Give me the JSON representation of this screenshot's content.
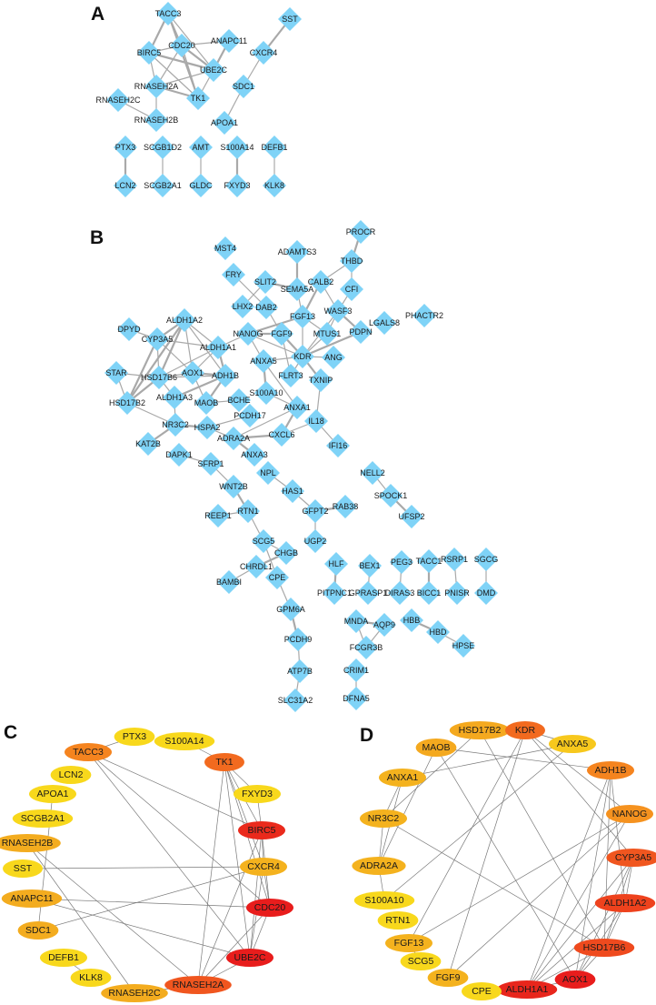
{
  "panels": [
    {
      "id": "A",
      "label": "A",
      "node_shape": "diamond",
      "node_color": "#7fd3f7",
      "nodes": [
        "TACC3",
        "ANAPC11",
        "CDC20",
        "BIRC5",
        "UBE2C",
        "RNASEH2A",
        "TK1",
        "RNASEH2C",
        "RNASEH2B",
        "SST",
        "CXCR4",
        "SDC1",
        "APOA1",
        "PTX3",
        "SCGB1D2",
        "AMT",
        "S100A14",
        "DEFB1",
        "LCN2",
        "SCGB2A1",
        "GLDC",
        "FXYD3",
        "KLK8"
      ],
      "edges": [
        [
          "TACC3",
          "BIRC5"
        ],
        [
          "TACC3",
          "CDC20"
        ],
        [
          "TACC3",
          "UBE2C"
        ],
        [
          "TACC3",
          "TK1"
        ],
        [
          "CDC20",
          "ANAPC11"
        ],
        [
          "CDC20",
          "BIRC5"
        ],
        [
          "CDC20",
          "UBE2C"
        ],
        [
          "CDC20",
          "TK1"
        ],
        [
          "CDC20",
          "RNASEH2A"
        ],
        [
          "BIRC5",
          "UBE2C"
        ],
        [
          "BIRC5",
          "TK1"
        ],
        [
          "BIRC5",
          "RNASEH2A"
        ],
        [
          "ANAPC11",
          "UBE2C"
        ],
        [
          "UBE2C",
          "TK1"
        ],
        [
          "UBE2C",
          "RNASEH2A"
        ],
        [
          "RNASEH2A",
          "TK1"
        ],
        [
          "RNASEH2A",
          "RNASEH2B"
        ],
        [
          "RNASEH2C",
          "RNASEH2B"
        ],
        [
          "SST",
          "CXCR4"
        ],
        [
          "CXCR4",
          "SDC1"
        ],
        [
          "SDC1",
          "APOA1"
        ],
        [
          "PTX3",
          "LCN2"
        ],
        [
          "SCGB1D2",
          "SCGB2A1"
        ],
        [
          "AMT",
          "GLDC"
        ],
        [
          "S100A14",
          "FXYD3"
        ],
        [
          "DEFB1",
          "KLK8"
        ]
      ]
    },
    {
      "id": "B",
      "label": "B",
      "node_shape": "diamond",
      "node_color": "#7fd3f7",
      "nodes": [
        "PROCR",
        "MST4",
        "ADAMTS3",
        "THBD",
        "FRY",
        "SLIT2",
        "SEMA5A",
        "CALB2",
        "CFI",
        "LHX2",
        "DAB2",
        "WASF3",
        "FGF13",
        "PHACTR2",
        "LGALS8",
        "DPYD",
        "ALDH1A2",
        "NANOG",
        "FGF9",
        "MTUS1",
        "PDPN",
        "CYP3A5",
        "ALDH1A1",
        "KDR",
        "ANG",
        "ANXA5",
        "STAR",
        "HSD17B6",
        "AOX1",
        "ADH1B",
        "FLRT3",
        "TXNIP",
        "S100A10",
        "HSD17B2",
        "ALDH1A3",
        "MAOB",
        "BCHE",
        "ANXA1",
        "PCDH17",
        "IL18",
        "NR3C2",
        "HSPA2",
        "CXCL6",
        "ADRA2A",
        "KAT2B",
        "IFI16",
        "DAPK1",
        "ANXA3",
        "SFRP1",
        "NPL",
        "NELL2",
        "WNT2B",
        "HAS1",
        "SPOCK1",
        "REEP1",
        "RTN1",
        "GFPT2",
        "RAB38",
        "UFSP2",
        "SCG5",
        "UGP2",
        "CHGB",
        "HLF",
        "BEX1",
        "PEG3",
        "TACC1",
        "RSRP1",
        "SGCG",
        "CHRDL1",
        "BAMBI",
        "CPE",
        "PITPNC1",
        "GPRASP1",
        "DIRAS3",
        "BICC1",
        "PNISR",
        "DMD",
        "GPM6A",
        "MNDA",
        "AQP9",
        "HBB",
        "HBD",
        "FCGR3B",
        "HPSE",
        "PCDH9",
        "CRIM1",
        "ATP7B",
        "DFNA5",
        "SLC31A2"
      ],
      "edges": [
        [
          "PROCR",
          "THBD"
        ],
        [
          "THBD",
          "CALB2"
        ],
        [
          "THBD",
          "CFI"
        ],
        [
          "ADAMTS3",
          "SEMA5A"
        ],
        [
          "FRY",
          "DAB2"
        ],
        [
          "SLIT2",
          "LHX2"
        ],
        [
          "SLIT2",
          "SEMA5A"
        ],
        [
          "SEMA5A",
          "FGF13"
        ],
        [
          "CALB2",
          "WASF3"
        ],
        [
          "CALB2",
          "FGF13"
        ],
        [
          "CFI",
          "WASF3"
        ],
        [
          "WASF3",
          "KDR"
        ],
        [
          "WASF3",
          "PDPN"
        ],
        [
          "WASF3",
          "MTUS1"
        ],
        [
          "DAB2",
          "FGF9"
        ],
        [
          "FGF13",
          "NANOG"
        ],
        [
          "FGF13",
          "KDR"
        ],
        [
          "FGF13",
          "MTUS1"
        ],
        [
          "NANOG",
          "FGF9"
        ],
        [
          "NANOG",
          "KDR"
        ],
        [
          "NANOG",
          "ANXA5"
        ],
        [
          "FGF9",
          "KDR"
        ],
        [
          "FGF9",
          "FLRT3"
        ],
        [
          "MTUS1",
          "KDR"
        ],
        [
          "PDPN",
          "KDR"
        ],
        [
          "KDR",
          "ANG"
        ],
        [
          "KDR",
          "ANXA5"
        ],
        [
          "KDR",
          "TXNIP"
        ],
        [
          "KDR",
          "FLRT3"
        ],
        [
          "TXNIP",
          "IL18"
        ],
        [
          "ANXA5",
          "S100A10"
        ],
        [
          "ANXA5",
          "ANXA1"
        ],
        [
          "S100A10",
          "ANXA1"
        ],
        [
          "ANXA1",
          "CXCL6"
        ],
        [
          "ANXA1",
          "ADRA2A"
        ],
        [
          "CXCL6",
          "IL18"
        ],
        [
          "CXCL6",
          "ADRA2A"
        ],
        [
          "IL18",
          "IFI16"
        ],
        [
          "ADRA2A",
          "HSPA2"
        ],
        [
          "HSPA2",
          "NR3C2"
        ],
        [
          "HSPA2",
          "PCDH17"
        ],
        [
          "MAOB",
          "BCHE"
        ],
        [
          "MAOB",
          "ADH1B"
        ],
        [
          "MAOB",
          "AOX1"
        ],
        [
          "DPYD",
          "CYP3A5"
        ],
        [
          "CYP3A5",
          "ALDH1A2"
        ],
        [
          "CYP3A5",
          "ALDH1A1"
        ],
        [
          "CYP3A5",
          "HSD17B6"
        ],
        [
          "CYP3A5",
          "HSD17B2"
        ],
        [
          "CYP3A5",
          "AOX1"
        ],
        [
          "ALDH1A2",
          "ALDH1A1"
        ],
        [
          "ALDH1A2",
          "HSD17B6"
        ],
        [
          "ALDH1A2",
          "AOX1"
        ],
        [
          "ALDH1A2",
          "ADH1B"
        ],
        [
          "ALDH1A2",
          "HSD17B2"
        ],
        [
          "ALDH1A1",
          "HSD17B6"
        ],
        [
          "ALDH1A1",
          "AOX1"
        ],
        [
          "ALDH1A1",
          "ADH1B"
        ],
        [
          "ALDH1A1",
          "NANOG"
        ],
        [
          "AOX1",
          "HSD17B6"
        ],
        [
          "AOX1",
          "ADH1B"
        ],
        [
          "HSD17B6",
          "ADH1B"
        ],
        [
          "HSD17B6",
          "STAR"
        ],
        [
          "HSD17B6",
          "HSD17B2"
        ],
        [
          "HSD17B6",
          "ALDH1A3"
        ],
        [
          "STAR",
          "HSD17B2"
        ],
        [
          "ALDH1A3",
          "ADH1B"
        ],
        [
          "ALDH1A3",
          "NR3C2"
        ],
        [
          "HSD17B2",
          "NR3C2"
        ],
        [
          "NR3C2",
          "KAT2B"
        ],
        [
          "DAPK1",
          "SFRP1"
        ],
        [
          "SFRP1",
          "WNT2B"
        ],
        [
          "WNT2B",
          "RTN1"
        ],
        [
          "RTN1",
          "REEP1"
        ],
        [
          "RTN1",
          "SCG5"
        ],
        [
          "ANXA3",
          "ADRA2A"
        ],
        [
          "NPL",
          "HAS1"
        ],
        [
          "HAS1",
          "GFPT2"
        ],
        [
          "GFPT2",
          "RAB38"
        ],
        [
          "GFPT2",
          "UGP2"
        ],
        [
          "NELL2",
          "SPOCK1"
        ],
        [
          "SPOCK1",
          "UFSP2"
        ],
        [
          "SCG5",
          "CHGB"
        ],
        [
          "SCG5",
          "CPE"
        ],
        [
          "CHGB",
          "CHRDL1"
        ],
        [
          "CHRDL1",
          "BAMBI"
        ],
        [
          "CPE",
          "GPM6A"
        ],
        [
          "GPM6A",
          "PCDH9"
        ],
        [
          "PCDH9",
          "ATP7B"
        ],
        [
          "ATP7B",
          "SLC31A2"
        ],
        [
          "HLF",
          "PITPNC1"
        ],
        [
          "BEX1",
          "GPRASP1"
        ],
        [
          "PEG3",
          "DIRAS3"
        ],
        [
          "TACC1",
          "BICC1"
        ],
        [
          "RSRP1",
          "PNISR"
        ],
        [
          "SGCG",
          "DMD"
        ],
        [
          "MNDA",
          "AQP9"
        ],
        [
          "MNDA",
          "FCGR3B"
        ],
        [
          "AQP9",
          "FCGR3B"
        ],
        [
          "HBB",
          "HBD"
        ],
        [
          "HBD",
          "HPSE"
        ],
        [
          "CRIM1",
          "DFNA5"
        ]
      ]
    },
    {
      "id": "C",
      "label": "C",
      "node_shape": "ellipse",
      "nodes": [
        {
          "name": "PTX3",
          "color": "#f8d81c"
        },
        {
          "name": "S100A14",
          "color": "#f8d81c"
        },
        {
          "name": "TACC3",
          "color": "#f5841f"
        },
        {
          "name": "TK1",
          "color": "#f26a1f"
        },
        {
          "name": "LCN2",
          "color": "#f8d81c"
        },
        {
          "name": "FXYD3",
          "color": "#f8d81c"
        },
        {
          "name": "APOA1",
          "color": "#f8d81c"
        },
        {
          "name": "SCGB2A1",
          "color": "#f8d81c"
        },
        {
          "name": "BIRC5",
          "color": "#ea2a1c"
        },
        {
          "name": "RNASEH2B",
          "color": "#f3ac1f"
        },
        {
          "name": "SST",
          "color": "#f8d81c"
        },
        {
          "name": "CXCR4",
          "color": "#f4b21e"
        },
        {
          "name": "ANAPC11",
          "color": "#f3ac1f"
        },
        {
          "name": "CDC20",
          "color": "#e81d1c"
        },
        {
          "name": "SDC1",
          "color": "#f3ac1f"
        },
        {
          "name": "UBE2C",
          "color": "#e81d1c"
        },
        {
          "name": "DEFB1",
          "color": "#f8d81c"
        },
        {
          "name": "KLK8",
          "color": "#f8d81c"
        },
        {
          "name": "RNASEH2A",
          "color": "#f0561f"
        },
        {
          "name": "RNASEH2C",
          "color": "#f3ac1f"
        }
      ],
      "edges": [
        [
          "TACC3",
          "PTX3"
        ],
        [
          "TACC3",
          "BIRC5"
        ],
        [
          "TACC3",
          "CDC20"
        ],
        [
          "TACC3",
          "UBE2C"
        ],
        [
          "S100A14",
          "TK1"
        ],
        [
          "TK1",
          "FXYD3"
        ],
        [
          "TK1",
          "BIRC5"
        ],
        [
          "TK1",
          "CXCR4"
        ],
        [
          "TK1",
          "CDC20"
        ],
        [
          "TK1",
          "UBE2C"
        ],
        [
          "TK1",
          "RNASEH2A"
        ],
        [
          "FXYD3",
          "BIRC5"
        ],
        [
          "BIRC5",
          "CXCR4"
        ],
        [
          "BIRC5",
          "CDC20"
        ],
        [
          "BIRC5",
          "UBE2C"
        ],
        [
          "BIRC5",
          "RNASEH2A"
        ],
        [
          "CXCR4",
          "CDC20"
        ],
        [
          "CXCR4",
          "UBE2C"
        ],
        [
          "CXCR4",
          "SST"
        ],
        [
          "CXCR4",
          "SDC1"
        ],
        [
          "CDC20",
          "UBE2C"
        ],
        [
          "CDC20",
          "ANAPC11"
        ],
        [
          "CDC20",
          "RNASEH2A"
        ],
        [
          "UBE2C",
          "ANAPC11"
        ],
        [
          "UBE2C",
          "RNASEH2A"
        ],
        [
          "RNASEH2A",
          "RNASEH2C"
        ],
        [
          "RNASEH2A",
          "RNASEH2B"
        ],
        [
          "RNASEH2B",
          "RNASEH2C"
        ],
        [
          "APOA1",
          "SDC1"
        ],
        [
          "DEFB1",
          "KLK8"
        ]
      ]
    },
    {
      "id": "D",
      "label": "D",
      "node_shape": "ellipse",
      "nodes": [
        {
          "name": "HSD17B2",
          "color": "#f4a91f"
        },
        {
          "name": "KDR",
          "color": "#f26a1f"
        },
        {
          "name": "ANXA5",
          "color": "#f7c81d"
        },
        {
          "name": "MAOB",
          "color": "#f4a91f"
        },
        {
          "name": "ADH1B",
          "color": "#f5841f"
        },
        {
          "name": "ANXA1",
          "color": "#f4b21e"
        },
        {
          "name": "NANOG",
          "color": "#f5921f"
        },
        {
          "name": "NR3C2",
          "color": "#f4b21e"
        },
        {
          "name": "CYP3A5",
          "color": "#f0561f"
        },
        {
          "name": "ADRA2A",
          "color": "#f4b21e"
        },
        {
          "name": "ALDH1A2",
          "color": "#ee421d"
        },
        {
          "name": "S100A10",
          "color": "#f8d81c"
        },
        {
          "name": "RTN1",
          "color": "#f8d81c"
        },
        {
          "name": "FGF13",
          "color": "#f4b21e"
        },
        {
          "name": "HSD17B6",
          "color": "#ef4a1e"
        },
        {
          "name": "SCG5",
          "color": "#f8d81c"
        },
        {
          "name": "AOX1",
          "color": "#e81d1c"
        },
        {
          "name": "FGF9",
          "color": "#f4b21e"
        },
        {
          "name": "ALDH1A1",
          "color": "#e8261c"
        },
        {
          "name": "CPE",
          "color": "#f8d81c"
        }
      ],
      "edges": [
        [
          "HSD17B2",
          "NR3C2"
        ],
        [
          "HSD17B2",
          "HSD17B6"
        ],
        [
          "KDR",
          "ANXA5"
        ],
        [
          "KDR",
          "NANOG"
        ],
        [
          "KDR",
          "FGF13"
        ],
        [
          "KDR",
          "FGF9"
        ],
        [
          "KDR",
          "CYP3A5"
        ],
        [
          "ANXA5",
          "ANXA1"
        ],
        [
          "ANXA5",
          "S100A10"
        ],
        [
          "MAOB",
          "ADH1B"
        ],
        [
          "MAOB",
          "AOX1"
        ],
        [
          "ANXA1",
          "NR3C2"
        ],
        [
          "ANXA1",
          "ADRA2A"
        ],
        [
          "NR3C2",
          "ADRA2A"
        ],
        [
          "NR3C2",
          "HSD17B6"
        ],
        [
          "ADRA2A",
          "S100A10"
        ],
        [
          "MAOB",
          "ADRA2A"
        ],
        [
          "NANOG",
          "FGF13"
        ],
        [
          "NANOG",
          "FGF9"
        ],
        [
          "NANOG",
          "ALDH1A1"
        ],
        [
          "ADH1B",
          "ALDH1A1"
        ],
        [
          "ADH1B",
          "AOX1"
        ],
        [
          "ADH1B",
          "ALDH1A2"
        ],
        [
          "ADH1B",
          "HSD17B6"
        ],
        [
          "CYP3A5",
          "ALDH1A1"
        ],
        [
          "CYP3A5",
          "AOX1"
        ],
        [
          "CYP3A5",
          "HSD17B6"
        ],
        [
          "CYP3A5",
          "ALDH1A2"
        ],
        [
          "ALDH1A2",
          "ALDH1A1"
        ],
        [
          "ALDH1A2",
          "AOX1"
        ],
        [
          "ALDH1A2",
          "HSD17B6"
        ],
        [
          "HSD17B6",
          "ALDH1A1"
        ],
        [
          "HSD17B6",
          "AOX1"
        ],
        [
          "AOX1",
          "ALDH1A1"
        ],
        [
          "FGF13",
          "SCG5"
        ]
      ]
    }
  ]
}
